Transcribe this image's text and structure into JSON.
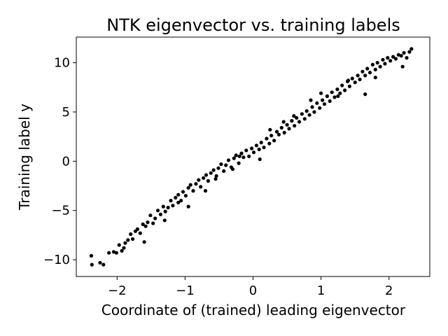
{
  "chart_data": {
    "type": "scatter",
    "title": "NTK eigenvector vs. training labels",
    "xlabel": "Coordinate of (trained) leading eigenvector",
    "ylabel": "Training label y",
    "xlim": [
      -2.6,
      2.6
    ],
    "ylim": [
      -11.7,
      12.6
    ],
    "xticks": [
      -2,
      -1,
      0,
      1,
      2
    ],
    "yticks": [
      -10,
      -5,
      0,
      5,
      10
    ],
    "xtick_labels": [
      "−2",
      "−1",
      "0",
      "1",
      "2"
    ],
    "ytick_labels": [
      "−10",
      "−5",
      "0",
      "5",
      "10"
    ],
    "grid": false,
    "marker_color": "#000000",
    "series": [
      {
        "x": [
          -2.38,
          -2.37,
          -2.25,
          -2.2,
          -2.12,
          -2.05,
          -2.01,
          -1.97,
          -1.93,
          -1.88,
          -1.84,
          -1.8,
          -1.77,
          -1.73,
          -1.7,
          -1.66,
          -1.62,
          -1.58,
          -1.55,
          -1.51,
          -1.47,
          -1.44,
          -1.4,
          -1.36,
          -1.32,
          -1.29,
          -1.25,
          -1.21,
          -1.18,
          -1.14,
          -1.1,
          -1.06,
          -1.03,
          -0.99,
          -0.95,
          -0.92,
          -0.88,
          -0.84,
          -0.8,
          -0.77,
          -0.73,
          -0.69,
          -0.66,
          -0.62,
          -0.58,
          -0.54,
          -0.51,
          -0.47,
          -0.43,
          -0.4,
          -0.36,
          -0.32,
          -0.28,
          -0.25,
          -0.21,
          -0.17,
          -0.14,
          -0.1,
          -0.06,
          -0.02,
          0.01,
          0.05,
          0.09,
          0.12,
          0.16,
          0.2,
          0.24,
          0.27,
          0.31,
          0.35,
          0.38,
          0.42,
          0.46,
          0.5,
          0.53,
          0.57,
          0.61,
          0.64,
          0.68,
          0.72,
          0.76,
          0.79,
          0.83,
          0.87,
          0.9,
          0.94,
          0.98,
          1.02,
          1.05,
          1.09,
          1.13,
          1.16,
          1.2,
          1.24,
          1.28,
          1.31,
          1.35,
          1.39,
          1.42,
          1.46,
          1.5,
          1.54,
          1.57,
          1.61,
          1.65,
          1.68,
          1.72,
          1.76,
          1.8,
          1.83,
          1.87,
          1.91,
          1.94,
          1.98,
          2.02,
          2.06,
          2.1,
          2.14,
          2.18,
          2.22,
          2.26,
          2.3,
          2.33,
          -1.6,
          -1.3,
          -0.95,
          -0.55,
          -0.2,
          0.25,
          0.6,
          1.0,
          1.4,
          1.8,
          2.2,
          -1.9,
          -1.1,
          -0.7,
          0.1,
          0.85,
          1.25,
          -0.3,
          0.45,
          1.65
        ],
        "y": [
          -9.6,
          -10.5,
          -10.3,
          -10.5,
          -9.3,
          -9.2,
          -9.3,
          -8.5,
          -9.1,
          -8.3,
          -8.0,
          -7.4,
          -7.9,
          -7.1,
          -6.9,
          -7.3,
          -6.4,
          -6.6,
          -6.2,
          -5.5,
          -6.3,
          -5.8,
          -5.0,
          -5.4,
          -4.6,
          -5.1,
          -4.7,
          -4.0,
          -4.5,
          -3.7,
          -3.4,
          -4.0,
          -3.1,
          -3.5,
          -2.7,
          -2.4,
          -3.0,
          -2.3,
          -1.9,
          -2.6,
          -1.7,
          -1.4,
          -2.0,
          -1.2,
          -0.9,
          -1.5,
          -0.7,
          -0.3,
          -1.0,
          -0.4,
          0.1,
          -0.6,
          0.3,
          0.6,
          -0.2,
          0.8,
          0.4,
          1.1,
          0.5,
          1.3,
          0.9,
          1.6,
          1.2,
          1.9,
          1.4,
          2.3,
          1.8,
          2.6,
          2.1,
          3.0,
          2.7,
          3.4,
          2.9,
          3.7,
          3.3,
          4.1,
          3.6,
          4.4,
          4.0,
          4.8,
          4.3,
          5.1,
          4.7,
          5.5,
          5.0,
          5.9,
          5.4,
          6.2,
          5.8,
          6.6,
          6.1,
          7.0,
          6.5,
          7.3,
          6.9,
          7.7,
          7.2,
          8.1,
          7.6,
          8.4,
          8.0,
          8.7,
          8.3,
          9.1,
          8.7,
          9.4,
          9.0,
          9.8,
          9.3,
          10.0,
          9.6,
          10.3,
          9.9,
          10.5,
          10.2,
          10.6,
          10.4,
          10.8,
          10.7,
          11.0,
          10.5,
          11.1,
          11.4,
          -8.2,
          -6.0,
          -4.6,
          -1.8,
          0.5,
          3.2,
          4.6,
          6.9,
          8.2,
          8.5,
          9.6,
          -8.8,
          -4.2,
          -3.0,
          0.2,
          6.2,
          6.6,
          -0.8,
          4.0,
          6.8
        ]
      }
    ]
  }
}
